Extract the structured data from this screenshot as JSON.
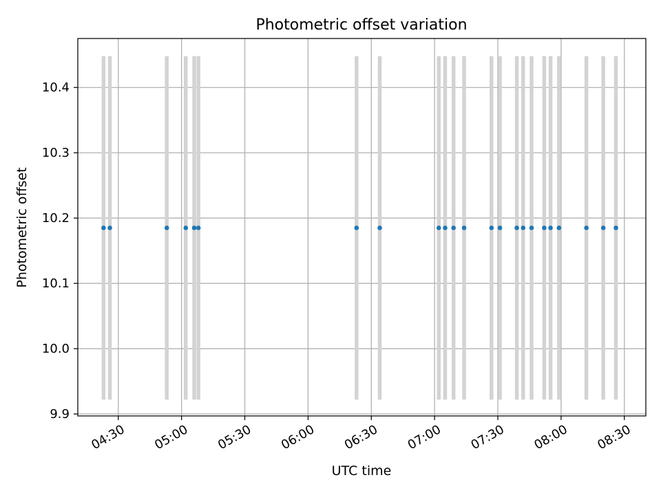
{
  "chart_data": {
    "type": "scatter",
    "title": "Photometric offset variation",
    "xlabel": "UTC time",
    "ylabel": "Photometric offset",
    "x_type": "time",
    "xlim": [
      "04:10:48",
      "08:40:12"
    ],
    "ylim": [
      9.897,
      10.475
    ],
    "x_ticks": [
      "04:30",
      "05:00",
      "05:30",
      "06:00",
      "06:30",
      "07:00",
      "07:30",
      "08:00",
      "08:30"
    ],
    "y_ticks": [
      "9.9",
      "10.0",
      "10.1",
      "10.2",
      "10.3",
      "10.4"
    ],
    "y_tick_values": [
      9.9,
      10.0,
      10.1,
      10.2,
      10.3,
      10.4
    ],
    "grid": true,
    "series": [
      {
        "x": [
          "04:23",
          "04:26",
          "04:53",
          "05:02",
          "05:06",
          "05:08",
          "06:23",
          "06:34",
          "07:02",
          "07:05",
          "07:09",
          "07:14",
          "07:27",
          "07:31",
          "07:39",
          "07:42",
          "07:46",
          "07:52",
          "07:55",
          "07:59",
          "08:12",
          "08:20",
          "08:26"
        ],
        "y": [
          10.185,
          10.185,
          10.185,
          10.185,
          10.185,
          10.185,
          10.185,
          10.185,
          10.185,
          10.185,
          10.185,
          10.185,
          10.185,
          10.185,
          10.185,
          10.185,
          10.185,
          10.185,
          10.185,
          10.185,
          10.185,
          10.185,
          10.185
        ],
        "err_low": [
          9.922,
          9.922,
          9.922,
          9.922,
          9.922,
          9.922,
          9.922,
          9.922,
          9.922,
          9.922,
          9.922,
          9.922,
          9.922,
          9.922,
          9.922,
          9.922,
          9.922,
          9.922,
          9.922,
          9.922,
          9.922,
          9.922,
          9.922
        ],
        "err_high": [
          10.448,
          10.448,
          10.448,
          10.448,
          10.448,
          10.448,
          10.448,
          10.448,
          10.448,
          10.448,
          10.448,
          10.448,
          10.448,
          10.448,
          10.448,
          10.448,
          10.448,
          10.448,
          10.448,
          10.448,
          10.448,
          10.448,
          10.448
        ]
      }
    ],
    "colors": {
      "point": "#1f77b4",
      "errorbar": "#d3d3d3",
      "grid": "#b0b0b0",
      "axis": "#000000"
    }
  }
}
